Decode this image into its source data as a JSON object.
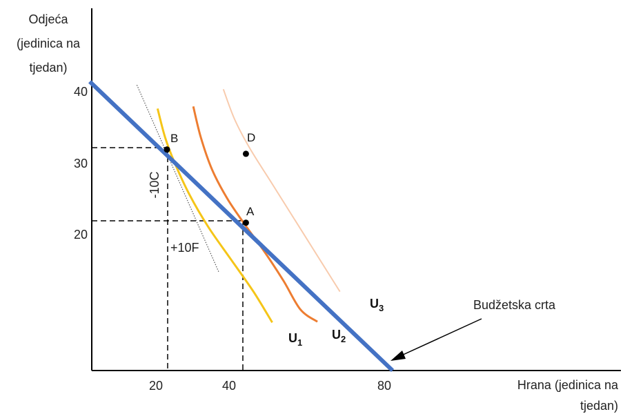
{
  "chart_data": {
    "type": "line",
    "axes": {
      "x": {
        "label_lines": [
          "Hrana (jedinica na",
          "tjedan)"
        ],
        "ticks": [
          20,
          40,
          80
        ]
      },
      "y": {
        "label_lines": [
          "Odjeća",
          "(jedinica na",
          "tjedan)"
        ],
        "ticks": [
          20,
          30,
          40
        ]
      }
    },
    "budget_line": {
      "label": "Budžetska crta",
      "points": [
        [
          0,
          40
        ],
        [
          80,
          0
        ]
      ],
      "color": "#4472C4"
    },
    "tangent_line": {
      "points": [
        [
          12,
          39.8
        ],
        [
          33.8,
          13.7
        ]
      ]
    },
    "indifference_curves": [
      {
        "label": "U",
        "sub": "1",
        "color": "#F5C518",
        "points": [
          [
            17.5,
            36.5
          ],
          [
            19.5,
            32.5
          ],
          [
            22,
            29
          ],
          [
            26,
            24.5
          ],
          [
            31,
            20
          ],
          [
            37,
            15.5
          ],
          [
            43,
            11
          ],
          [
            48,
            6.7
          ]
        ]
      },
      {
        "label": "U",
        "sub": "2",
        "color": "#ED7D31",
        "points": [
          [
            27,
            36.8
          ],
          [
            29,
            32.5
          ],
          [
            32,
            28
          ],
          [
            36,
            24
          ],
          [
            40.5,
            20.5
          ],
          [
            46,
            16.5
          ],
          [
            51,
            12.5
          ],
          [
            55.5,
            8.5
          ],
          [
            60,
            6.8
          ]
        ]
      },
      {
        "label": "U",
        "sub": "3",
        "color": "#F8CBAD",
        "points": [
          [
            35,
            39.2
          ],
          [
            38,
            35
          ],
          [
            42,
            31
          ],
          [
            48,
            26
          ],
          [
            54,
            21
          ],
          [
            60,
            16
          ],
          [
            66,
            11
          ]
        ]
      }
    ],
    "points": [
      {
        "label": "A",
        "x": 41,
        "y": 20.6
      },
      {
        "label": "B",
        "x": 20,
        "y": 30.8
      },
      {
        "label": "D",
        "x": 41,
        "y": 30.2
      }
    ],
    "annotations": [
      {
        "text": "-10C"
      },
      {
        "text": "+10F"
      }
    ]
  }
}
